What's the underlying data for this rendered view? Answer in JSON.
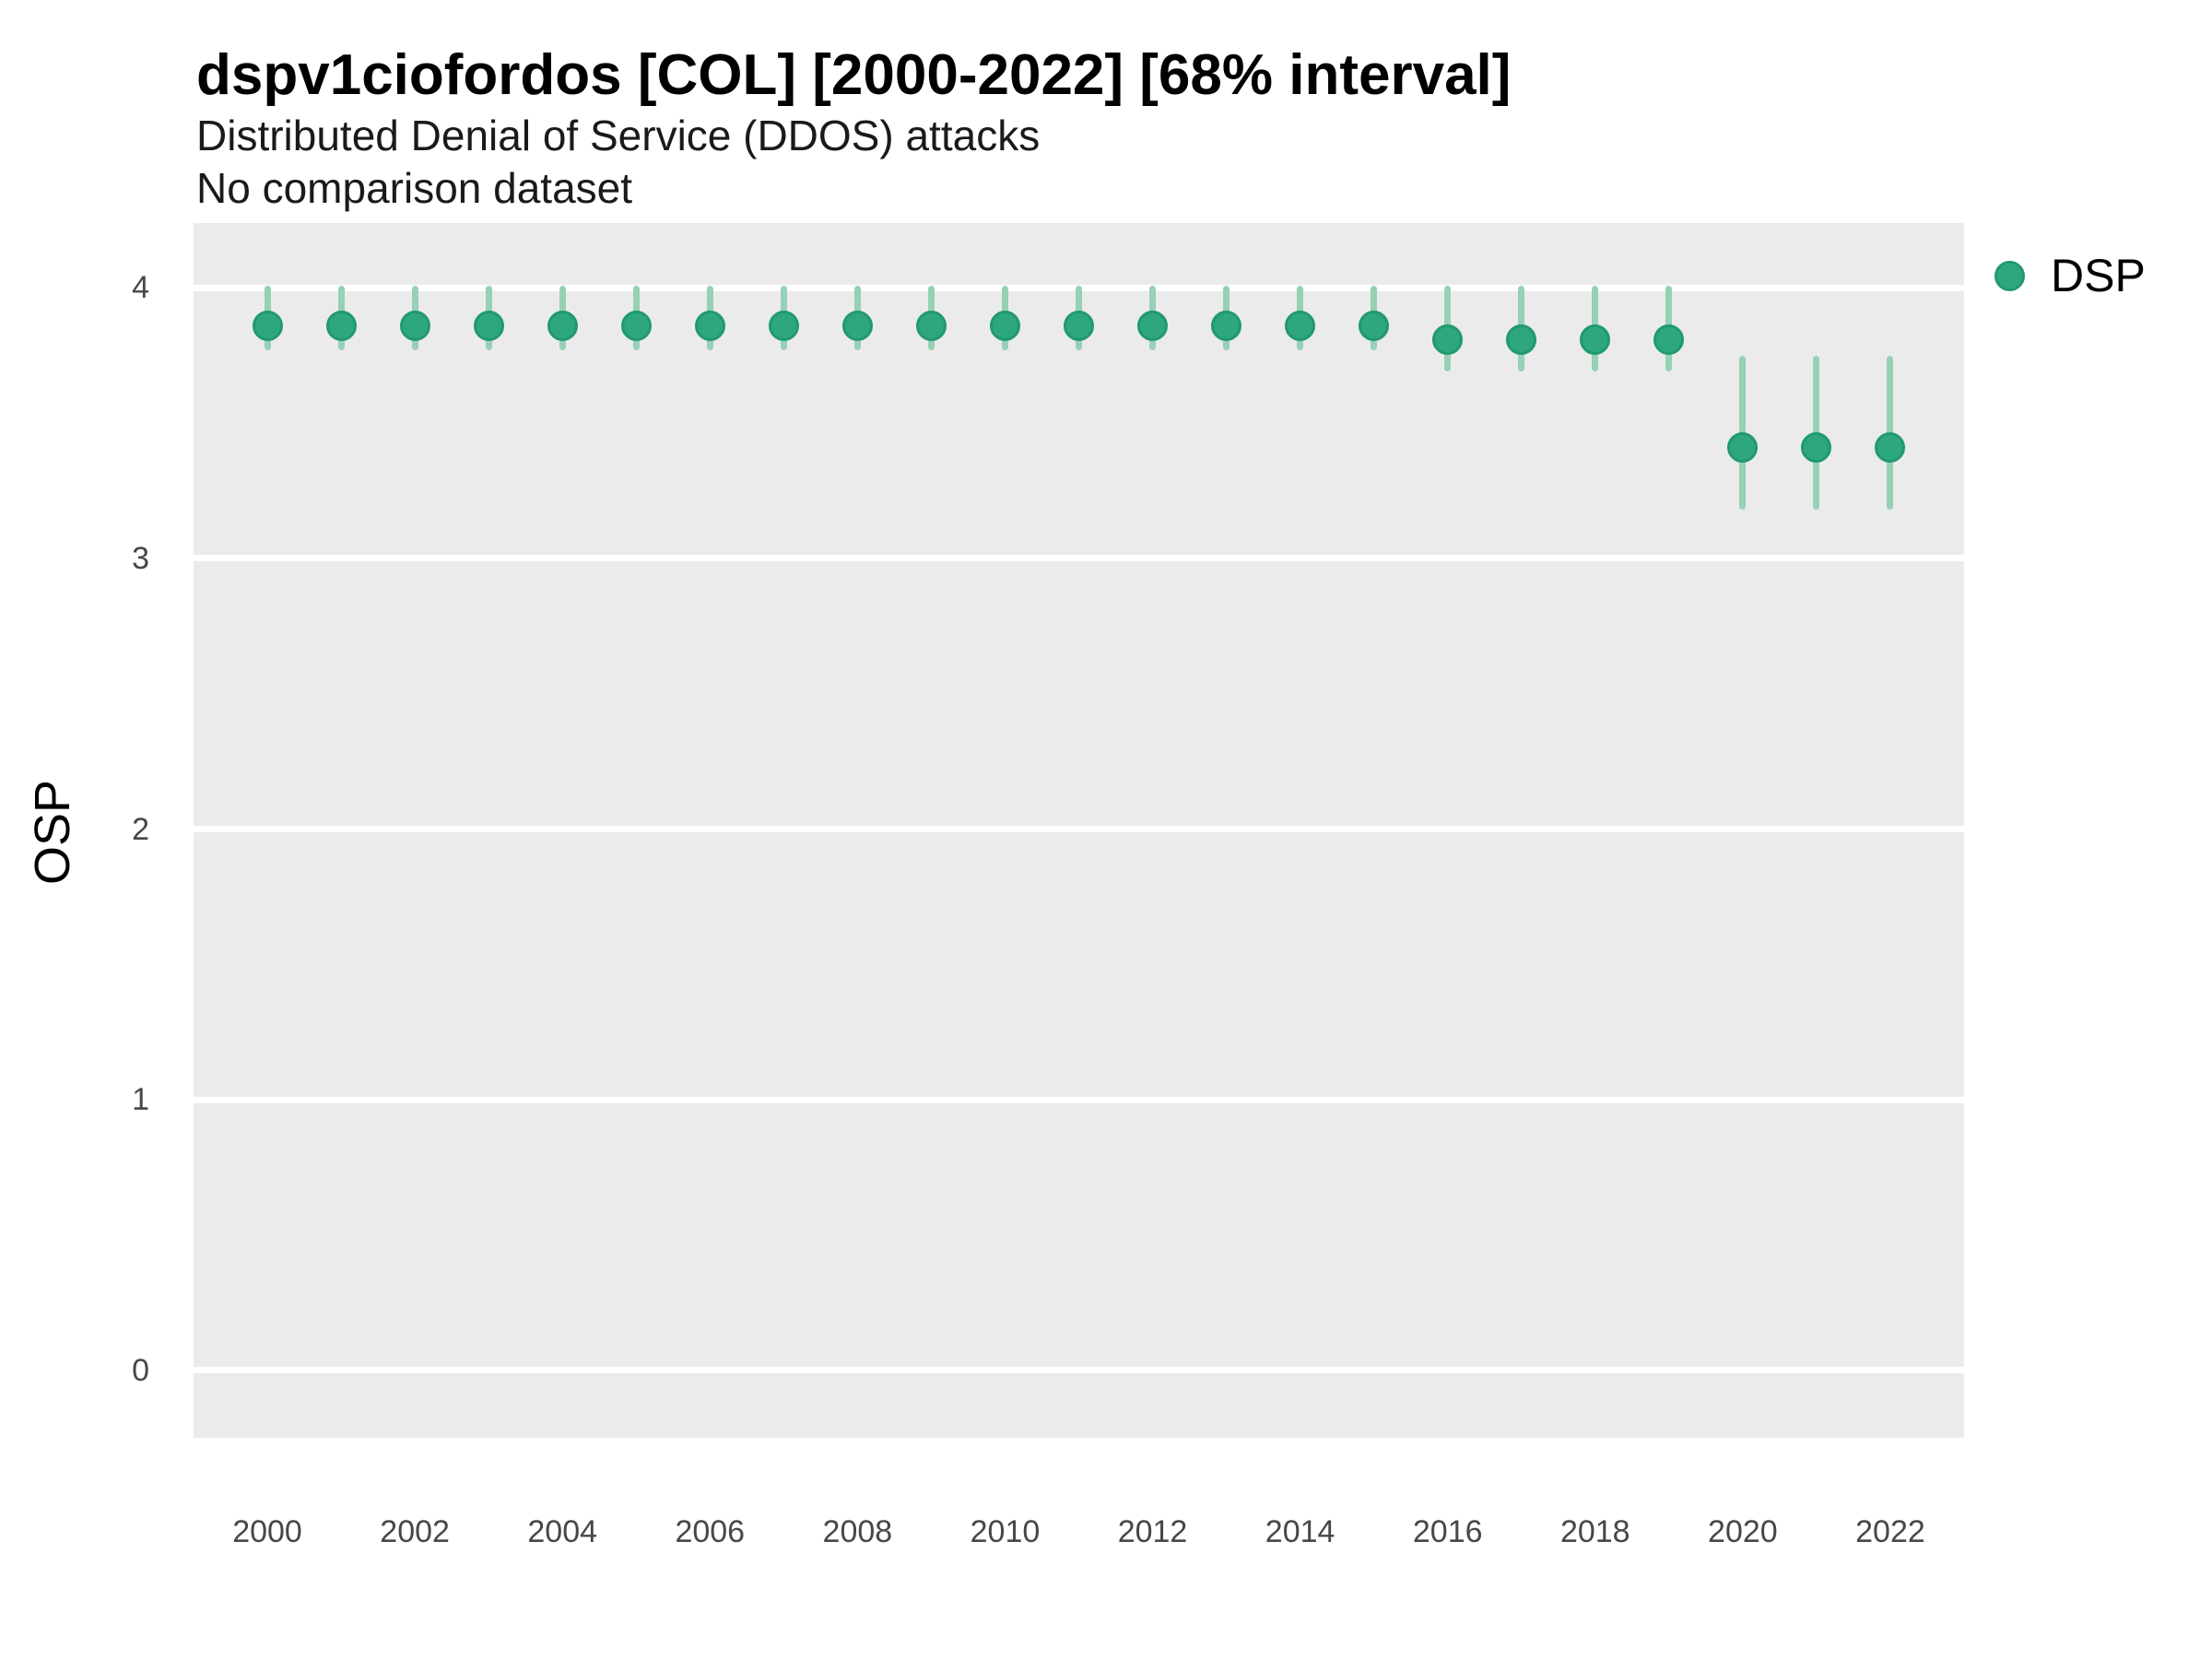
{
  "header": {
    "title": "dspv1ciofordos [COL] [2000-2022] [68% interval]",
    "subtitle": "Distributed Denial of Service (DDOS) attacks",
    "comparison_note": "No comparison dataset"
  },
  "axes": {
    "y_label": "OSP",
    "y_ticks": [
      4,
      3,
      2,
      1,
      0
    ],
    "x_ticks": [
      2000,
      2002,
      2004,
      2006,
      2008,
      2010,
      2012,
      2014,
      2016,
      2018,
      2020,
      2022
    ]
  },
  "legend": {
    "items": [
      {
        "label": "DSP",
        "color": "#2EA77E"
      }
    ],
    "position": "right-top"
  },
  "colors": {
    "point": "#2EA77E",
    "point_border": "#21996F",
    "interval": "#97D1B5",
    "panel_bg": "#EBEBEB",
    "gridline": "#FFFFFF",
    "tick_text": "#474747",
    "title_text": "#000000"
  },
  "chart_data": {
    "type": "scatter",
    "title": "dspv1ciofordos [COL] [2000-2022] [68% interval]",
    "subtitle": "Distributed Denial of Service (DDOS) attacks",
    "xlabel": "",
    "ylabel": "OSP",
    "interval": "68%",
    "xlim": [
      1999,
      2023
    ],
    "ylim": [
      -0.25,
      4.24
    ],
    "grid": "horizontal-only",
    "legend_position": "right-top",
    "series": [
      {
        "name": "DSP",
        "points": [
          {
            "x": 2000,
            "y": 3.86,
            "lo": 3.77,
            "hi": 4.01
          },
          {
            "x": 2001,
            "y": 3.86,
            "lo": 3.77,
            "hi": 4.01
          },
          {
            "x": 2002,
            "y": 3.86,
            "lo": 3.77,
            "hi": 4.01
          },
          {
            "x": 2003,
            "y": 3.86,
            "lo": 3.77,
            "hi": 4.01
          },
          {
            "x": 2004,
            "y": 3.86,
            "lo": 3.77,
            "hi": 4.01
          },
          {
            "x": 2005,
            "y": 3.86,
            "lo": 3.77,
            "hi": 4.01
          },
          {
            "x": 2006,
            "y": 3.86,
            "lo": 3.77,
            "hi": 4.01
          },
          {
            "x": 2007,
            "y": 3.86,
            "lo": 3.77,
            "hi": 4.01
          },
          {
            "x": 2008,
            "y": 3.86,
            "lo": 3.77,
            "hi": 4.01
          },
          {
            "x": 2009,
            "y": 3.86,
            "lo": 3.77,
            "hi": 4.01
          },
          {
            "x": 2010,
            "y": 3.86,
            "lo": 3.77,
            "hi": 4.01
          },
          {
            "x": 2011,
            "y": 3.86,
            "lo": 3.77,
            "hi": 4.01
          },
          {
            "x": 2012,
            "y": 3.86,
            "lo": 3.77,
            "hi": 4.01
          },
          {
            "x": 2013,
            "y": 3.86,
            "lo": 3.77,
            "hi": 4.01
          },
          {
            "x": 2014,
            "y": 3.86,
            "lo": 3.77,
            "hi": 4.01
          },
          {
            "x": 2015,
            "y": 3.86,
            "lo": 3.77,
            "hi": 4.01
          },
          {
            "x": 2016,
            "y": 3.81,
            "lo": 3.69,
            "hi": 4.01
          },
          {
            "x": 2017,
            "y": 3.81,
            "lo": 3.69,
            "hi": 4.01
          },
          {
            "x": 2018,
            "y": 3.81,
            "lo": 3.69,
            "hi": 4.01
          },
          {
            "x": 2019,
            "y": 3.81,
            "lo": 3.69,
            "hi": 4.01
          },
          {
            "x": 2020,
            "y": 3.41,
            "lo": 3.18,
            "hi": 3.75
          },
          {
            "x": 2021,
            "y": 3.41,
            "lo": 3.18,
            "hi": 3.75
          },
          {
            "x": 2022,
            "y": 3.41,
            "lo": 3.18,
            "hi": 3.75
          }
        ]
      }
    ]
  }
}
